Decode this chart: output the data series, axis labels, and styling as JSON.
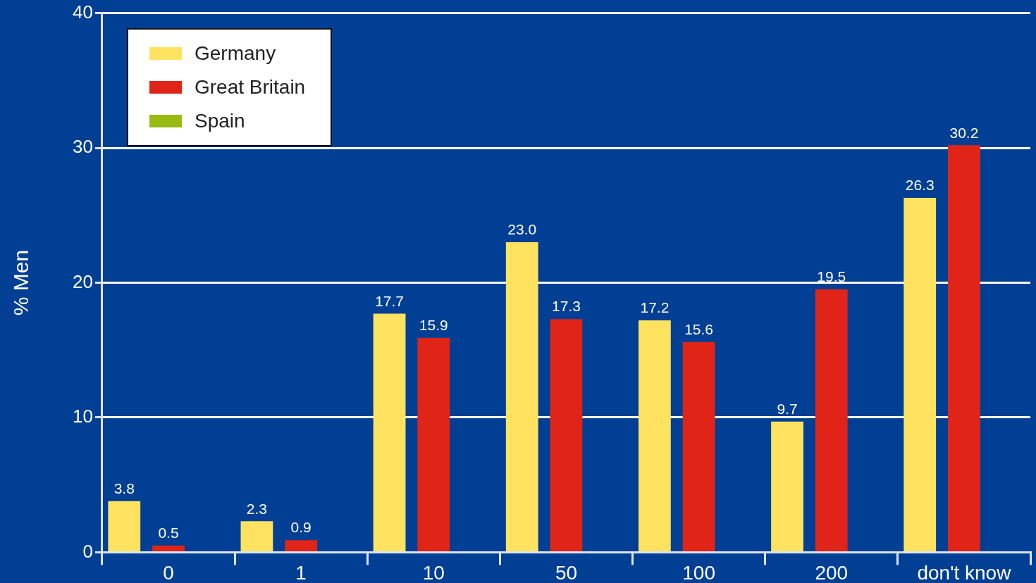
{
  "chart_data": {
    "type": "bar",
    "ylabel": "% Men",
    "categories": [
      "0",
      "1",
      "10",
      "50",
      "100",
      "200",
      "don't know"
    ],
    "series": [
      {
        "name": "Germany",
        "color": "#ffe360",
        "values": [
          3.8,
          2.3,
          17.7,
          23.0,
          17.2,
          9.7,
          26.3
        ],
        "value_labels": [
          "3.8",
          "2.3",
          "17.7",
          "23.0",
          "17.2",
          "9.7",
          "26.3"
        ]
      },
      {
        "name": "Great Britain",
        "color": "#e02418",
        "values": [
          0.5,
          0.9,
          15.9,
          17.3,
          15.6,
          19.5,
          30.2
        ],
        "value_labels": [
          "0.5",
          "0.9",
          "15.9",
          "17.3",
          "15.6",
          "19.5",
          "30.2"
        ]
      },
      {
        "name": "Spain",
        "color": "#99bb11",
        "values": [
          null,
          null,
          null,
          null,
          null,
          null,
          null
        ]
      }
    ],
    "ylim": [
      0,
      40
    ],
    "yticks": [
      0,
      10,
      20,
      30,
      40
    ],
    "grid": "y",
    "legend": "top left"
  }
}
